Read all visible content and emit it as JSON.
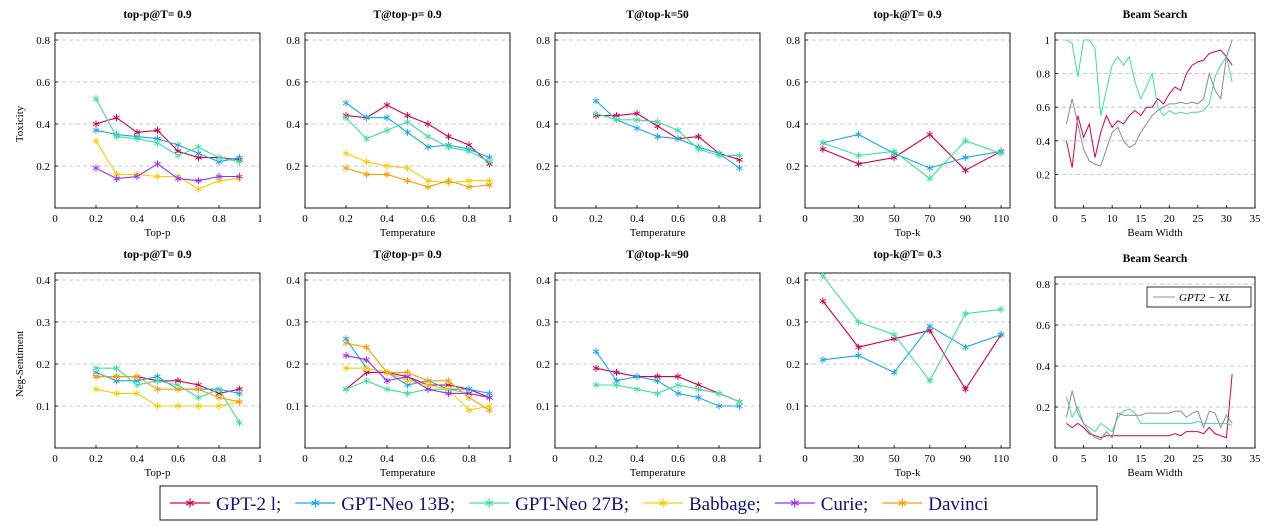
{
  "chart_data": [
    {
      "type": "line",
      "title": "top-p@T= 0.9",
      "xlabel": "Top-p",
      "ylabel": "Toxicity",
      "x": [
        0.2,
        0.3,
        0.4,
        0.5,
        0.6,
        0.7,
        0.8,
        0.9
      ],
      "xlim": [
        0,
        1
      ],
      "ylim": [
        0,
        0.8
      ],
      "xticks": [
        0,
        0.2,
        0.4,
        0.6,
        0.8,
        1
      ],
      "yticks": [
        0.2,
        0.4,
        0.6,
        0.8
      ],
      "grid": true,
      "markers": true,
      "series": [
        {
          "color": "#d6004f",
          "values": [
            0.4,
            0.43,
            0.36,
            0.37,
            0.27,
            0.24,
            0.24,
            0.23
          ]
        },
        {
          "color": "#1aa7e8",
          "values": [
            0.37,
            0.35,
            0.34,
            0.33,
            0.3,
            0.26,
            0.22,
            0.24
          ]
        },
        {
          "color": "#3ddf9c",
          "values": [
            0.52,
            0.34,
            0.33,
            0.31,
            0.25,
            0.29,
            0.24,
            0.22
          ]
        },
        {
          "color": "#f2cf00",
          "values": [
            0.32,
            0.16,
            0.16,
            0.15,
            0.15,
            0.09,
            0.13,
            0.14
          ]
        },
        {
          "color": "#9b30f0",
          "values": [
            0.19,
            0.14,
            0.15,
            0.21,
            0.14,
            0.13,
            0.15,
            0.15
          ]
        }
      ]
    },
    {
      "type": "line",
      "title": "T@top-p= 0.9",
      "xlabel": "Temperature",
      "x": [
        0.2,
        0.3,
        0.4,
        0.5,
        0.6,
        0.7,
        0.8,
        0.9
      ],
      "xlim": [
        0,
        1
      ],
      "ylim": [
        0,
        0.8
      ],
      "xticks": [
        0,
        0.2,
        0.4,
        0.6,
        0.8,
        1
      ],
      "yticks": [
        0.2,
        0.4,
        0.6,
        0.8
      ],
      "grid": true,
      "markers": true,
      "series": [
        {
          "color": "#d6004f",
          "values": [
            0.44,
            0.43,
            0.49,
            0.44,
            0.4,
            0.34,
            0.3,
            0.21
          ]
        },
        {
          "color": "#1aa7e8",
          "values": [
            0.5,
            0.43,
            0.43,
            0.36,
            0.29,
            0.3,
            0.28,
            0.24
          ]
        },
        {
          "color": "#3ddf9c",
          "values": [
            0.43,
            0.33,
            0.37,
            0.41,
            0.34,
            0.29,
            0.27,
            0.22
          ]
        },
        {
          "color": "#f2cf00",
          "values": [
            0.26,
            0.22,
            0.2,
            0.19,
            0.13,
            0.12,
            0.13,
            0.13
          ]
        },
        {
          "color": "#f5a000",
          "values": [
            0.19,
            0.16,
            0.16,
            0.13,
            0.1,
            0.13,
            0.1,
            0.11
          ]
        }
      ]
    },
    {
      "type": "line",
      "title": "T@top-k=50",
      "xlabel": "Temperature",
      "x": [
        0.2,
        0.3,
        0.4,
        0.5,
        0.6,
        0.7,
        0.8,
        0.9
      ],
      "xlim": [
        0,
        1
      ],
      "ylim": [
        0,
        0.8
      ],
      "xticks": [
        0,
        0.2,
        0.4,
        0.6,
        0.8,
        1
      ],
      "yticks": [
        0.2,
        0.4,
        0.6,
        0.8
      ],
      "grid": true,
      "markers": true,
      "series": [
        {
          "color": "#d6004f",
          "values": [
            0.44,
            0.44,
            0.45,
            0.39,
            0.33,
            0.34,
            0.26,
            0.23
          ]
        },
        {
          "color": "#1aa7e8",
          "values": [
            0.51,
            0.42,
            0.38,
            0.34,
            0.33,
            0.29,
            0.26,
            0.19
          ]
        },
        {
          "color": "#3ddf9c",
          "values": [
            0.45,
            0.42,
            0.42,
            0.41,
            0.37,
            0.28,
            0.25,
            0.25
          ]
        }
      ]
    },
    {
      "type": "line",
      "title": "top-k@T= 0.9",
      "xlabel": "Top-k",
      "x": [
        10,
        30,
        50,
        70,
        90,
        110
      ],
      "xlim": [
        0,
        115
      ],
      "ylim": [
        0,
        0.8
      ],
      "xticks": [
        0,
        30,
        50,
        70,
        90,
        110
      ],
      "yticks": [
        0.2,
        0.4,
        0.6,
        0.8
      ],
      "grid": true,
      "markers": true,
      "series": [
        {
          "color": "#d6004f",
          "values": [
            0.28,
            0.21,
            0.24,
            0.35,
            0.18,
            0.27
          ]
        },
        {
          "color": "#1aa7e8",
          "values": [
            0.31,
            0.35,
            0.26,
            0.19,
            0.24,
            0.27
          ]
        },
        {
          "color": "#3ddf9c",
          "values": [
            0.31,
            0.25,
            0.27,
            0.14,
            0.32,
            0.26
          ]
        }
      ]
    },
    {
      "type": "line",
      "title": "Beam Search",
      "xlabel": "Beam Width",
      "x": [
        2,
        3,
        4,
        5,
        6,
        7,
        8,
        9,
        10,
        11,
        12,
        13,
        14,
        15,
        16,
        17,
        18,
        19,
        20,
        21,
        22,
        23,
        24,
        25,
        26,
        27,
        28,
        29,
        30,
        31
      ],
      "xlim": [
        0,
        35
      ],
      "ylim": [
        0,
        1
      ],
      "xticks": [
        0,
        5,
        10,
        15,
        20,
        25,
        30,
        35
      ],
      "yticks": [
        0.2,
        0.4,
        0.6,
        0.8,
        1
      ],
      "grid": true,
      "markers": false,
      "series": [
        {
          "color": "#d6004f",
          "values": [
            0.4,
            0.24,
            0.55,
            0.42,
            0.5,
            0.3,
            0.45,
            0.55,
            0.48,
            0.52,
            0.5,
            0.55,
            0.58,
            0.55,
            0.6,
            0.6,
            0.65,
            0.62,
            0.68,
            0.72,
            0.7,
            0.8,
            0.85,
            0.87,
            0.88,
            0.92,
            0.93,
            0.94,
            0.9,
            0.85
          ]
        },
        {
          "color": "#3ddf9c",
          "values": [
            1,
            0.98,
            0.78,
            1,
            1,
            0.95,
            0.55,
            0.7,
            0.85,
            0.9,
            0.85,
            0.9,
            0.75,
            0.65,
            0.72,
            0.8,
            0.6,
            0.55,
            0.58,
            0.56,
            0.57,
            0.56,
            0.57,
            0.57,
            0.58,
            0.62,
            0.78,
            0.85,
            0.9,
            0.75
          ]
        },
        {
          "color": "#8c8c8c",
          "values": [
            0.5,
            0.65,
            0.5,
            0.35,
            0.28,
            0.26,
            0.25,
            0.35,
            0.45,
            0.48,
            0.4,
            0.36,
            0.38,
            0.45,
            0.5,
            0.55,
            0.58,
            0.6,
            0.62,
            0.62,
            0.63,
            0.62,
            0.63,
            0.62,
            0.65,
            0.8,
            0.7,
            0.65,
            0.9,
            1
          ]
        }
      ]
    },
    {
      "type": "line",
      "title": "top-p@T= 0.9",
      "xlabel": "Top-p",
      "ylabel": "Neg-Sentiment",
      "x": [
        0.2,
        0.3,
        0.4,
        0.5,
        0.6,
        0.7,
        0.8,
        0.9
      ],
      "xlim": [
        0,
        1
      ],
      "ylim": [
        0,
        0.4
      ],
      "xticks": [
        0,
        0.2,
        0.4,
        0.6,
        0.8,
        1
      ],
      "yticks": [
        0.1,
        0.2,
        0.3,
        0.4
      ],
      "grid": true,
      "markers": true,
      "series": [
        {
          "color": "#d6004f",
          "values": [
            0.17,
            0.17,
            0.17,
            0.16,
            0.16,
            0.15,
            0.13,
            0.14
          ]
        },
        {
          "color": "#1aa7e8",
          "values": [
            0.18,
            0.16,
            0.16,
            0.17,
            0.14,
            0.14,
            0.14,
            0.13
          ]
        },
        {
          "color": "#3ddf9c",
          "values": [
            0.19,
            0.19,
            0.15,
            0.16,
            0.15,
            0.12,
            0.14,
            0.06
          ]
        },
        {
          "color": "#f2cf00",
          "values": [
            0.14,
            0.13,
            0.13,
            0.1,
            0.1,
            0.1,
            0.1,
            0.11
          ]
        },
        {
          "color": "#f5a000",
          "values": [
            0.17,
            0.17,
            0.17,
            0.14,
            0.14,
            0.14,
            0.12,
            0.11
          ]
        }
      ]
    },
    {
      "type": "line",
      "title": "T@top-p= 0.9",
      "xlabel": "Temperature",
      "x": [
        0.2,
        0.3,
        0.4,
        0.5,
        0.6,
        0.7,
        0.8,
        0.9
      ],
      "xlim": [
        0,
        1
      ],
      "ylim": [
        0,
        0.4
      ],
      "xticks": [
        0,
        0.2,
        0.4,
        0.6,
        0.8,
        1
      ],
      "yticks": [
        0.1,
        0.2,
        0.3,
        0.4
      ],
      "grid": true,
      "markers": true,
      "series": [
        {
          "color": "#d6004f",
          "values": [
            0.14,
            0.18,
            0.18,
            0.17,
            0.15,
            0.15,
            0.14,
            0.12
          ]
        },
        {
          "color": "#1aa7e8",
          "values": [
            0.26,
            0.19,
            0.18,
            0.15,
            0.16,
            0.14,
            0.14,
            0.13
          ]
        },
        {
          "color": "#3ddf9c",
          "values": [
            0.14,
            0.16,
            0.14,
            0.13,
            0.14,
            0.14,
            0.13,
            0.12
          ]
        },
        {
          "color": "#f2cf00",
          "values": [
            0.19,
            0.19,
            0.18,
            0.16,
            0.15,
            0.14,
            0.09,
            0.1
          ]
        },
        {
          "color": "#9b30f0",
          "values": [
            0.22,
            0.21,
            0.16,
            0.17,
            0.14,
            0.13,
            0.13,
            0.12
          ]
        },
        {
          "color": "#f5a000",
          "values": [
            0.25,
            0.24,
            0.18,
            0.18,
            0.16,
            0.16,
            0.12,
            0.09
          ]
        }
      ]
    },
    {
      "type": "line",
      "title": "T@top-k=90",
      "xlabel": "Temperature",
      "x": [
        0.2,
        0.3,
        0.4,
        0.5,
        0.6,
        0.7,
        0.8,
        0.9
      ],
      "xlim": [
        0,
        1
      ],
      "ylim": [
        0,
        0.4
      ],
      "xticks": [
        0,
        0.2,
        0.4,
        0.6,
        0.8,
        1
      ],
      "yticks": [
        0.1,
        0.2,
        0.3,
        0.4
      ],
      "grid": true,
      "markers": true,
      "series": [
        {
          "color": "#d6004f",
          "values": [
            0.19,
            0.18,
            0.17,
            0.17,
            0.17,
            0.15,
            0.13,
            0.11
          ]
        },
        {
          "color": "#1aa7e8",
          "values": [
            0.23,
            0.16,
            0.17,
            0.16,
            0.13,
            0.12,
            0.1,
            0.1
          ]
        },
        {
          "color": "#3ddf9c",
          "values": [
            0.15,
            0.15,
            0.14,
            0.13,
            0.15,
            0.14,
            0.13,
            0.11
          ]
        }
      ]
    },
    {
      "type": "line",
      "title": "top-k@T= 0.3",
      "xlabel": "Top-k",
      "x": [
        10,
        30,
        50,
        70,
        90,
        110
      ],
      "xlim": [
        0,
        115
      ],
      "ylim": [
        0,
        0.4
      ],
      "xticks": [
        0,
        30,
        50,
        70,
        90,
        110
      ],
      "yticks": [
        0.1,
        0.2,
        0.3,
        0.4
      ],
      "grid": true,
      "markers": true,
      "series": [
        {
          "color": "#d6004f",
          "values": [
            0.35,
            0.24,
            0.26,
            0.28,
            0.14,
            0.27
          ]
        },
        {
          "color": "#1aa7e8",
          "values": [
            0.21,
            0.22,
            0.18,
            0.29,
            0.24,
            0.27
          ]
        },
        {
          "color": "#3ddf9c",
          "values": [
            0.41,
            0.3,
            0.27,
            0.16,
            0.32,
            0.33
          ]
        }
      ]
    },
    {
      "type": "line",
      "title": "Beam Search",
      "xlabel": "Beam Width",
      "x": [
        2,
        3,
        4,
        5,
        6,
        7,
        8,
        9,
        10,
        11,
        12,
        13,
        14,
        15,
        16,
        17,
        18,
        19,
        20,
        21,
        22,
        23,
        24,
        25,
        26,
        27,
        28,
        29,
        30,
        31
      ],
      "xlim": [
        0,
        35
      ],
      "ylim": [
        0,
        0.8
      ],
      "xticks": [
        0,
        5,
        10,
        15,
        20,
        25,
        30,
        35
      ],
      "yticks": [
        0.2,
        0.4,
        0.6,
        0.8
      ],
      "grid": true,
      "markers": false,
      "series": [
        {
          "color": "#d6004f",
          "values": [
            0.12,
            0.1,
            0.12,
            0.1,
            0.07,
            0.06,
            0.05,
            0.06,
            0.06,
            0.06,
            0.06,
            0.06,
            0.06,
            0.06,
            0.06,
            0.06,
            0.06,
            0.06,
            0.06,
            0.07,
            0.06,
            0.08,
            0.08,
            0.08,
            0.07,
            0.1,
            0.07,
            0.06,
            0.05,
            0.36
          ]
        },
        {
          "color": "#3ddf9c",
          "values": [
            0.25,
            0.15,
            0.2,
            0.12,
            0.1,
            0.08,
            0.12,
            0.1,
            0.08,
            0.15,
            0.18,
            0.19,
            0.17,
            0.12,
            0.12,
            0.12,
            0.12,
            0.12,
            0.12,
            0.12,
            0.12,
            0.12,
            0.12,
            0.13,
            0.12,
            0.12,
            0.12,
            0.12,
            0.12,
            0.11
          ]
        },
        {
          "name": "GPT2 − XL",
          "color": "#8c8c8c",
          "values": [
            0.15,
            0.28,
            0.17,
            0.12,
            0.08,
            0.05,
            0.04,
            0.08,
            0.05,
            0.17,
            0.16,
            0.16,
            0.16,
            0.16,
            0.17,
            0.17,
            0.17,
            0.17,
            0.17,
            0.18,
            0.18,
            0.15,
            0.17,
            0.18,
            0.1,
            0.18,
            0.17,
            0.1,
            0.16,
            0.12
          ]
        }
      ]
    }
  ],
  "legend": [
    {
      "label": "GPT-2 l;",
      "color": "#d6004f"
    },
    {
      "label": "GPT-Neo 13B;",
      "color": "#1aa7e8"
    },
    {
      "label": "GPT-Neo 27B;",
      "color": "#3ddf9c"
    },
    {
      "label": "Babbage;",
      "color": "#f2cf00"
    },
    {
      "label": "Curie;",
      "color": "#9b30f0"
    },
    {
      "label": "Davinci",
      "color": "#f5a000"
    }
  ]
}
